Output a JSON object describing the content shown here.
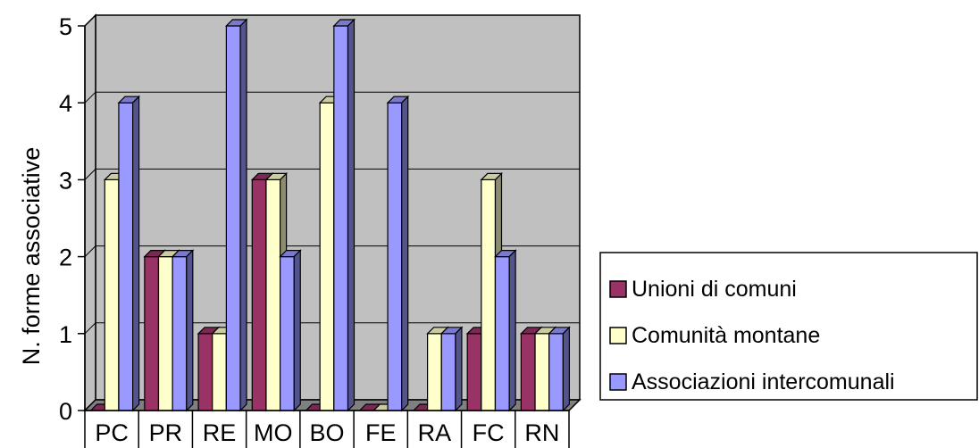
{
  "chart_data": {
    "type": "bar",
    "title": "",
    "xlabel": "",
    "ylabel": "N. forme associative",
    "categories": [
      "PC",
      "PR",
      "RE",
      "MO",
      "BO",
      "FE",
      "RA",
      "FC",
      "RN"
    ],
    "series": [
      {
        "name": "Unioni di comuni",
        "values": [
          0,
          2,
          1,
          3,
          0,
          0,
          0,
          1,
          1
        ],
        "color": "#993366"
      },
      {
        "name": "Comunità montane",
        "values": [
          3,
          2,
          1,
          3,
          4,
          0,
          1,
          3,
          1
        ],
        "color": "#FFFFCC"
      },
      {
        "name": "Associazioni intercomunali",
        "values": [
          4,
          2,
          5,
          2,
          5,
          4,
          1,
          2,
          1
        ],
        "color": "#9999FF"
      }
    ],
    "ylim": [
      0,
      5
    ],
    "yticks": [
      0,
      1,
      2,
      3,
      4,
      5
    ],
    "grid": true,
    "legend": "right",
    "wall_color": "#C0C0C0",
    "three_d": true
  }
}
